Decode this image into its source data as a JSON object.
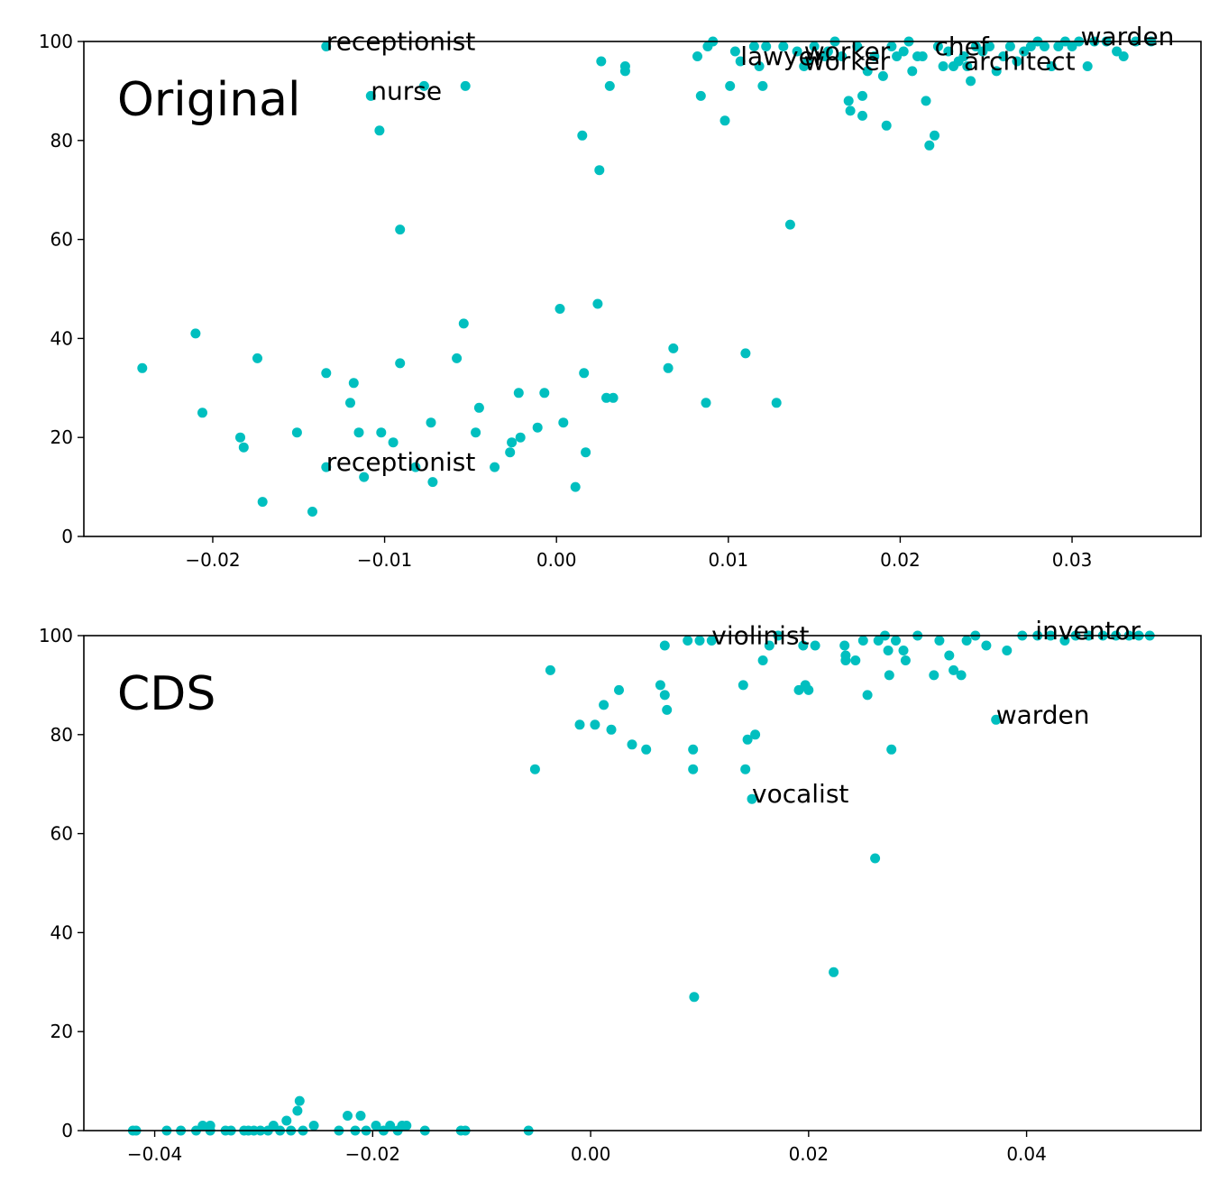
{
  "point_color": "#00bfbf",
  "chart_data": [
    {
      "type": "scatter",
      "panel_label": "Original",
      "xlim": [
        -0.0275,
        0.0375
      ],
      "ylim": [
        0,
        100
      ],
      "x_ticks": [
        -0.02,
        -0.01,
        0.0,
        0.01,
        0.02,
        0.03
      ],
      "x_tick_labels": [
        "−0.02",
        "−0.01",
        "0.00",
        "0.01",
        "0.02",
        "0.03"
      ],
      "y_ticks": [
        0,
        20,
        40,
        60,
        80,
        100
      ],
      "y_tick_labels": [
        "0",
        "20",
        "40",
        "60",
        "80",
        "100"
      ],
      "grid": false,
      "points": [
        [
          -0.0241,
          34
        ],
        [
          -0.021,
          41
        ],
        [
          -0.0206,
          25
        ],
        [
          -0.0184,
          20
        ],
        [
          -0.0182,
          18
        ],
        [
          -0.0174,
          36
        ],
        [
          -0.0171,
          7
        ],
        [
          -0.0151,
          21
        ],
        [
          -0.0142,
          5
        ],
        [
          -0.0134,
          33
        ],
        [
          -0.0134,
          14
        ],
        [
          -0.0134,
          99
        ],
        [
          -0.012,
          27
        ],
        [
          -0.0118,
          31
        ],
        [
          -0.0115,
          21
        ],
        [
          -0.0112,
          12
        ],
        [
          -0.0108,
          89
        ],
        [
          -0.0103,
          82
        ],
        [
          -0.0102,
          21
        ],
        [
          -0.0095,
          19
        ],
        [
          -0.0091,
          62
        ],
        [
          -0.0091,
          35
        ],
        [
          -0.0082,
          14
        ],
        [
          -0.0077,
          91
        ],
        [
          -0.0073,
          23
        ],
        [
          -0.0072,
          11
        ],
        [
          -0.0058,
          36
        ],
        [
          -0.0054,
          43
        ],
        [
          -0.0053,
          91
        ],
        [
          -0.0047,
          21
        ],
        [
          -0.0045,
          26
        ],
        [
          -0.0036,
          14
        ],
        [
          -0.0027,
          17
        ],
        [
          -0.0026,
          19
        ],
        [
          -0.0022,
          29
        ],
        [
          -0.0021,
          20
        ],
        [
          -0.0011,
          22
        ],
        [
          -0.0007,
          29
        ],
        [
          0.0002,
          46
        ],
        [
          0.0004,
          23
        ],
        [
          0.0011,
          10
        ],
        [
          0.0015,
          81
        ],
        [
          0.0016,
          33
        ],
        [
          0.0017,
          17
        ],
        [
          0.0024,
          47
        ],
        [
          0.0025,
          74
        ],
        [
          0.0026,
          96
        ],
        [
          0.0029,
          28
        ],
        [
          0.0031,
          91
        ],
        [
          0.0033,
          28
        ],
        [
          0.004,
          95
        ],
        [
          0.004,
          94
        ],
        [
          0.0065,
          34
        ],
        [
          0.0068,
          38
        ],
        [
          0.0082,
          97
        ],
        [
          0.0084,
          89
        ],
        [
          0.0087,
          27
        ],
        [
          0.0088,
          99
        ],
        [
          0.0091,
          100
        ],
        [
          0.0098,
          84
        ],
        [
          0.0101,
          91
        ],
        [
          0.0104,
          98
        ],
        [
          0.0107,
          96
        ],
        [
          0.011,
          37
        ],
        [
          0.0115,
          99
        ],
        [
          0.0118,
          95
        ],
        [
          0.012,
          91
        ],
        [
          0.0122,
          99
        ],
        [
          0.0128,
          27
        ],
        [
          0.0132,
          99
        ],
        [
          0.0136,
          63
        ],
        [
          0.014,
          98
        ],
        [
          0.0144,
          95
        ],
        [
          0.0146,
          96
        ],
        [
          0.015,
          99
        ],
        [
          0.0156,
          97
        ],
        [
          0.0158,
          98
        ],
        [
          0.0162,
          100
        ],
        [
          0.0166,
          97
        ],
        [
          0.017,
          88
        ],
        [
          0.0171,
          86
        ],
        [
          0.0175,
          99
        ],
        [
          0.0178,
          89
        ],
        [
          0.0178,
          85
        ],
        [
          0.0181,
          94
        ],
        [
          0.0185,
          97
        ],
        [
          0.019,
          93
        ],
        [
          0.0192,
          83
        ],
        [
          0.0195,
          99
        ],
        [
          0.0198,
          97
        ],
        [
          0.0202,
          98
        ],
        [
          0.0205,
          100
        ],
        [
          0.0207,
          94
        ],
        [
          0.021,
          97
        ],
        [
          0.0213,
          97
        ],
        [
          0.0215,
          88
        ],
        [
          0.0217,
          79
        ],
        [
          0.022,
          81
        ],
        [
          0.0222,
          99
        ],
        [
          0.0225,
          95
        ],
        [
          0.0228,
          98
        ],
        [
          0.0231,
          95
        ],
        [
          0.0234,
          96
        ],
        [
          0.0237,
          97
        ],
        [
          0.0239,
          95
        ],
        [
          0.0241,
          92
        ],
        [
          0.0244,
          99
        ],
        [
          0.0248,
          98
        ],
        [
          0.0252,
          99
        ],
        [
          0.0256,
          94
        ],
        [
          0.026,
          97
        ],
        [
          0.0264,
          99
        ],
        [
          0.0268,
          96
        ],
        [
          0.0272,
          98
        ],
        [
          0.0276,
          99
        ],
        [
          0.028,
          100
        ],
        [
          0.0284,
          99
        ],
        [
          0.0288,
          95
        ],
        [
          0.0292,
          99
        ],
        [
          0.0296,
          100
        ],
        [
          0.03,
          99
        ],
        [
          0.0304,
          100
        ],
        [
          0.0309,
          95
        ],
        [
          0.0313,
          100
        ],
        [
          0.032,
          100
        ],
        [
          0.0326,
          98
        ],
        [
          0.033,
          97
        ],
        [
          0.0337,
          100
        ],
        [
          0.0346,
          100
        ]
      ],
      "annotations": [
        {
          "text": "receptionist",
          "x": -0.0134,
          "y": 99
        },
        {
          "text": "nurse",
          "x": -0.0108,
          "y": 89
        },
        {
          "text": "receptionist",
          "x": -0.0134,
          "y": 14
        },
        {
          "text": "lawyer",
          "x": 0.0107,
          "y": 96
        },
        {
          "text": "worker",
          "x": 0.0144,
          "y": 97
        },
        {
          "text": "worker",
          "x": 0.0144,
          "y": 95
        },
        {
          "text": "chef",
          "x": 0.022,
          "y": 98
        },
        {
          "text": "architect",
          "x": 0.0237,
          "y": 95
        },
        {
          "text": "warden",
          "x": 0.0305,
          "y": 100
        }
      ]
    },
    {
      "type": "scatter",
      "panel_label": "CDS",
      "xlim": [
        -0.0465,
        0.056
      ],
      "ylim": [
        0,
        100
      ],
      "x_ticks": [
        -0.04,
        -0.02,
        0.0,
        0.02,
        0.04
      ],
      "x_tick_labels": [
        "−0.04",
        "−0.02",
        "0.00",
        "0.02",
        "0.04"
      ],
      "y_ticks": [
        0,
        20,
        40,
        60,
        80,
        100
      ],
      "y_tick_labels": [
        "0",
        "20",
        "40",
        "60",
        "80",
        "100"
      ],
      "grid": false,
      "points": [
        [
          -0.042,
          0
        ],
        [
          -0.0417,
          0
        ],
        [
          -0.0389,
          0
        ],
        [
          -0.0376,
          0
        ],
        [
          -0.0362,
          0
        ],
        [
          -0.0356,
          1
        ],
        [
          -0.0349,
          1
        ],
        [
          -0.0349,
          0
        ],
        [
          -0.0335,
          0
        ],
        [
          -0.033,
          0
        ],
        [
          -0.0318,
          0
        ],
        [
          -0.0314,
          0
        ],
        [
          -0.0309,
          0
        ],
        [
          -0.0303,
          0
        ],
        [
          -0.0296,
          0
        ],
        [
          -0.0291,
          1
        ],
        [
          -0.0285,
          0
        ],
        [
          -0.0279,
          2
        ],
        [
          -0.0275,
          0
        ],
        [
          -0.0269,
          4
        ],
        [
          -0.0267,
          6
        ],
        [
          -0.0264,
          0
        ],
        [
          -0.0254,
          1
        ],
        [
          -0.0231,
          0
        ],
        [
          -0.0223,
          3
        ],
        [
          -0.0216,
          0
        ],
        [
          -0.0211,
          3
        ],
        [
          -0.0206,
          0
        ],
        [
          -0.0197,
          1
        ],
        [
          -0.019,
          0
        ],
        [
          -0.0184,
          1
        ],
        [
          -0.0177,
          0
        ],
        [
          -0.0173,
          1
        ],
        [
          -0.0169,
          1
        ],
        [
          -0.0152,
          0
        ],
        [
          -0.0119,
          0
        ],
        [
          -0.0115,
          0
        ],
        [
          -0.0057,
          0
        ],
        [
          -0.0051,
          73
        ],
        [
          -0.0037,
          93
        ],
        [
          -0.001,
          82
        ],
        [
          0.0004,
          82
        ],
        [
          0.0012,
          86
        ],
        [
          0.0019,
          81
        ],
        [
          0.0026,
          89
        ],
        [
          0.0038,
          78
        ],
        [
          0.0051,
          77
        ],
        [
          0.0064,
          90
        ],
        [
          0.0068,
          98
        ],
        [
          0.0068,
          88
        ],
        [
          0.007,
          85
        ],
        [
          0.0089,
          99
        ],
        [
          0.0094,
          77
        ],
        [
          0.0094,
          73
        ],
        [
          0.0095,
          27
        ],
        [
          0.01,
          99
        ],
        [
          0.0111,
          99
        ],
        [
          0.014,
          90
        ],
        [
          0.0142,
          73
        ],
        [
          0.0144,
          79
        ],
        [
          0.0148,
          67
        ],
        [
          0.0151,
          80
        ],
        [
          0.0158,
          95
        ],
        [
          0.0164,
          98
        ],
        [
          0.0172,
          100
        ],
        [
          0.0191,
          89
        ],
        [
          0.0195,
          98
        ],
        [
          0.0197,
          90
        ],
        [
          0.02,
          89
        ],
        [
          0.0206,
          98
        ],
        [
          0.0223,
          32
        ],
        [
          0.0233,
          98
        ],
        [
          0.0234,
          96
        ],
        [
          0.0234,
          95
        ],
        [
          0.0243,
          95
        ],
        [
          0.025,
          99
        ],
        [
          0.0254,
          88
        ],
        [
          0.0261,
          55
        ],
        [
          0.0264,
          99
        ],
        [
          0.027,
          100
        ],
        [
          0.0273,
          97
        ],
        [
          0.0274,
          92
        ],
        [
          0.0276,
          77
        ],
        [
          0.028,
          99
        ],
        [
          0.0287,
          97
        ],
        [
          0.0289,
          95
        ],
        [
          0.03,
          100
        ],
        [
          0.0315,
          92
        ],
        [
          0.032,
          99
        ],
        [
          0.0329,
          96
        ],
        [
          0.0333,
          93
        ],
        [
          0.034,
          92
        ],
        [
          0.0345,
          99
        ],
        [
          0.0353,
          100
        ],
        [
          0.0363,
          98
        ],
        [
          0.0372,
          83
        ],
        [
          0.0382,
          97
        ],
        [
          0.0396,
          100
        ],
        [
          0.041,
          100
        ],
        [
          0.0422,
          100
        ],
        [
          0.0435,
          99
        ],
        [
          0.0445,
          100
        ],
        [
          0.0457,
          100
        ],
        [
          0.047,
          100
        ],
        [
          0.0482,
          100
        ],
        [
          0.0494,
          100
        ],
        [
          0.0503,
          100
        ],
        [
          0.0513,
          100
        ]
      ],
      "annotations": [
        {
          "text": "violinist",
          "x": 0.0111,
          "y": 99
        },
        {
          "text": "inventor",
          "x": 0.0408,
          "y": 100
        },
        {
          "text": "warden",
          "x": 0.0372,
          "y": 83
        },
        {
          "text": "vocalist",
          "x": 0.0148,
          "y": 67
        }
      ]
    }
  ]
}
